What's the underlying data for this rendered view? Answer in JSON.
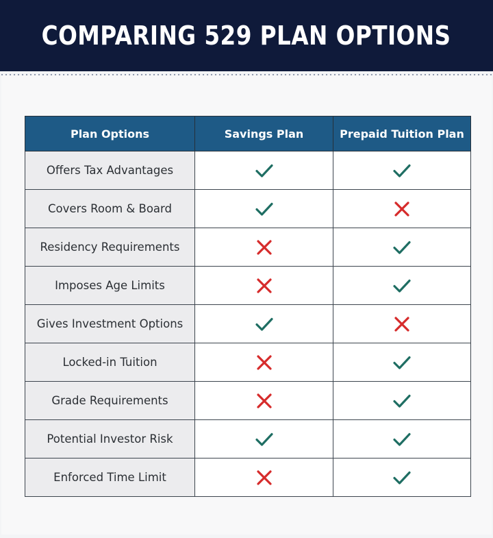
{
  "title": "COMPARING 529 PLAN OPTIONS",
  "table": {
    "headers": [
      "Plan Options",
      "Savings Plan",
      "Prepaid Tuition Plan"
    ],
    "rows": [
      {
        "label": "Offers Tax Advantages",
        "savings": "check",
        "prepaid": "check"
      },
      {
        "label": "Covers Room & Board",
        "savings": "check",
        "prepaid": "cross"
      },
      {
        "label": "Residency Requirements",
        "savings": "cross",
        "prepaid": "check"
      },
      {
        "label": "Imposes Age Limits",
        "savings": "cross",
        "prepaid": "check"
      },
      {
        "label": "Gives Investment Options",
        "savings": "check",
        "prepaid": "cross"
      },
      {
        "label": "Locked-in Tuition",
        "savings": "cross",
        "prepaid": "check"
      },
      {
        "label": "Grade Requirements",
        "savings": "cross",
        "prepaid": "check"
      },
      {
        "label": "Potential Investor Risk",
        "savings": "check",
        "prepaid": "check"
      },
      {
        "label": "Enforced Time Limit",
        "savings": "cross",
        "prepaid": "check"
      }
    ]
  },
  "colors": {
    "banner": "#0f1a3a",
    "header": "#1e5a86",
    "check": "#1f6e63",
    "cross": "#d62b2b"
  }
}
